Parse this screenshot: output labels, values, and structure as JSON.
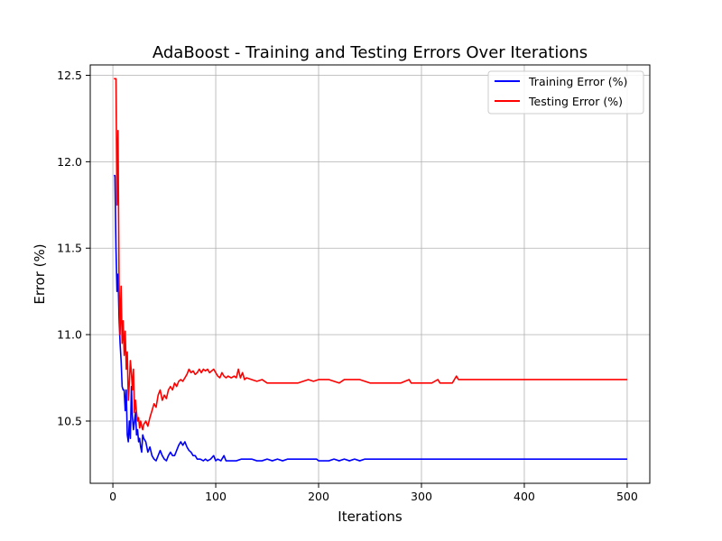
{
  "chart_data": {
    "type": "line",
    "title": "AdaBoost - Training and Testing Errors Over Iterations",
    "xlabel": "Iterations",
    "ylabel": "Error (%)",
    "xlim": [
      -22,
      522
    ],
    "ylim": [
      10.14,
      12.56
    ],
    "x_ticks": [
      0,
      100,
      200,
      300,
      400,
      500
    ],
    "y_ticks": [
      10.5,
      11.0,
      11.5,
      12.0,
      12.5
    ],
    "x_tick_labels": [
      "0",
      "100",
      "200",
      "300",
      "400",
      "500"
    ],
    "y_tick_labels": [
      "10.5",
      "11.0",
      "11.5",
      "12.0",
      "12.5"
    ],
    "grid": true,
    "legend_position": "top-right",
    "series": [
      {
        "name": "Training Error (%)",
        "color": "#0000ff",
        "points": [
          [
            1,
            11.92
          ],
          [
            2,
            11.92
          ],
          [
            3,
            11.5
          ],
          [
            4,
            11.25
          ],
          [
            5,
            11.35
          ],
          [
            6,
            11.1
          ],
          [
            7,
            10.95
          ],
          [
            8,
            10.85
          ],
          [
            9,
            10.7
          ],
          [
            10,
            10.68
          ],
          [
            11,
            10.68
          ],
          [
            12,
            10.56
          ],
          [
            13,
            10.68
          ],
          [
            14,
            10.42
          ],
          [
            15,
            10.38
          ],
          [
            16,
            10.5
          ],
          [
            17,
            10.4
          ],
          [
            18,
            10.7
          ],
          [
            19,
            10.52
          ],
          [
            20,
            10.45
          ],
          [
            21,
            10.5
          ],
          [
            22,
            10.55
          ],
          [
            23,
            10.42
          ],
          [
            24,
            10.45
          ],
          [
            25,
            10.38
          ],
          [
            26,
            10.4
          ],
          [
            27,
            10.35
          ],
          [
            28,
            10.32
          ],
          [
            29,
            10.42
          ],
          [
            30,
            10.4
          ],
          [
            32,
            10.38
          ],
          [
            34,
            10.32
          ],
          [
            36,
            10.35
          ],
          [
            38,
            10.3
          ],
          [
            40,
            10.28
          ],
          [
            42,
            10.27
          ],
          [
            44,
            10.3
          ],
          [
            46,
            10.33
          ],
          [
            48,
            10.3
          ],
          [
            50,
            10.28
          ],
          [
            52,
            10.27
          ],
          [
            54,
            10.3
          ],
          [
            56,
            10.32
          ],
          [
            58,
            10.3
          ],
          [
            60,
            10.3
          ],
          [
            62,
            10.33
          ],
          [
            64,
            10.36
          ],
          [
            66,
            10.38
          ],
          [
            68,
            10.36
          ],
          [
            70,
            10.38
          ],
          [
            72,
            10.35
          ],
          [
            74,
            10.33
          ],
          [
            76,
            10.32
          ],
          [
            78,
            10.3
          ],
          [
            80,
            10.3
          ],
          [
            82,
            10.28
          ],
          [
            85,
            10.28
          ],
          [
            88,
            10.27
          ],
          [
            90,
            10.28
          ],
          [
            92,
            10.27
          ],
          [
            95,
            10.28
          ],
          [
            98,
            10.3
          ],
          [
            100,
            10.27
          ],
          [
            102,
            10.28
          ],
          [
            105,
            10.27
          ],
          [
            108,
            10.3
          ],
          [
            110,
            10.27
          ],
          [
            115,
            10.27
          ],
          [
            120,
            10.27
          ],
          [
            125,
            10.28
          ],
          [
            130,
            10.28
          ],
          [
            135,
            10.28
          ],
          [
            140,
            10.27
          ],
          [
            145,
            10.27
          ],
          [
            150,
            10.28
          ],
          [
            155,
            10.27
          ],
          [
            160,
            10.28
          ],
          [
            165,
            10.27
          ],
          [
            170,
            10.28
          ],
          [
            180,
            10.28
          ],
          [
            190,
            10.28
          ],
          [
            198,
            10.28
          ],
          [
            200,
            10.27
          ],
          [
            205,
            10.27
          ],
          [
            210,
            10.27
          ],
          [
            215,
            10.28
          ],
          [
            220,
            10.27
          ],
          [
            225,
            10.28
          ],
          [
            230,
            10.27
          ],
          [
            235,
            10.28
          ],
          [
            240,
            10.27
          ],
          [
            245,
            10.28
          ],
          [
            250,
            10.28
          ],
          [
            300,
            10.28
          ],
          [
            350,
            10.28
          ],
          [
            400,
            10.28
          ],
          [
            450,
            10.28
          ],
          [
            500,
            10.28
          ]
        ]
      },
      {
        "name": "Testing Error (%)",
        "color": "#ff0000",
        "points": [
          [
            1,
            12.48
          ],
          [
            2,
            12.48
          ],
          [
            3,
            12.48
          ],
          [
            4,
            11.75
          ],
          [
            5,
            12.18
          ],
          [
            6,
            11.3
          ],
          [
            7,
            11.0
          ],
          [
            8,
            11.28
          ],
          [
            9,
            10.95
          ],
          [
            10,
            11.08
          ],
          [
            11,
            10.88
          ],
          [
            12,
            11.02
          ],
          [
            13,
            10.8
          ],
          [
            14,
            10.9
          ],
          [
            15,
            10.62
          ],
          [
            16,
            10.72
          ],
          [
            17,
            10.85
          ],
          [
            18,
            10.78
          ],
          [
            19,
            10.68
          ],
          [
            20,
            10.8
          ],
          [
            21,
            10.55
          ],
          [
            22,
            10.62
          ],
          [
            23,
            10.55
          ],
          [
            24,
            10.5
          ],
          [
            25,
            10.52
          ],
          [
            26,
            10.46
          ],
          [
            27,
            10.5
          ],
          [
            28,
            10.47
          ],
          [
            29,
            10.45
          ],
          [
            30,
            10.48
          ],
          [
            32,
            10.5
          ],
          [
            34,
            10.47
          ],
          [
            36,
            10.52
          ],
          [
            38,
            10.56
          ],
          [
            40,
            10.6
          ],
          [
            42,
            10.58
          ],
          [
            44,
            10.65
          ],
          [
            46,
            10.68
          ],
          [
            48,
            10.62
          ],
          [
            50,
            10.65
          ],
          [
            52,
            10.63
          ],
          [
            54,
            10.68
          ],
          [
            56,
            10.7
          ],
          [
            58,
            10.68
          ],
          [
            60,
            10.72
          ],
          [
            62,
            10.7
          ],
          [
            64,
            10.73
          ],
          [
            66,
            10.74
          ],
          [
            68,
            10.73
          ],
          [
            70,
            10.75
          ],
          [
            72,
            10.77
          ],
          [
            74,
            10.8
          ],
          [
            76,
            10.78
          ],
          [
            78,
            10.79
          ],
          [
            80,
            10.77
          ],
          [
            82,
            10.78
          ],
          [
            84,
            10.8
          ],
          [
            86,
            10.78
          ],
          [
            88,
            10.8
          ],
          [
            90,
            10.79
          ],
          [
            92,
            10.8
          ],
          [
            94,
            10.78
          ],
          [
            96,
            10.79
          ],
          [
            98,
            10.8
          ],
          [
            100,
            10.78
          ],
          [
            102,
            10.76
          ],
          [
            104,
            10.75
          ],
          [
            106,
            10.78
          ],
          [
            108,
            10.76
          ],
          [
            110,
            10.75
          ],
          [
            112,
            10.76
          ],
          [
            115,
            10.75
          ],
          [
            118,
            10.76
          ],
          [
            120,
            10.75
          ],
          [
            122,
            10.8
          ],
          [
            124,
            10.75
          ],
          [
            126,
            10.78
          ],
          [
            128,
            10.74
          ],
          [
            130,
            10.75
          ],
          [
            135,
            10.74
          ],
          [
            140,
            10.73
          ],
          [
            145,
            10.74
          ],
          [
            150,
            10.72
          ],
          [
            160,
            10.72
          ],
          [
            170,
            10.72
          ],
          [
            180,
            10.72
          ],
          [
            185,
            10.73
          ],
          [
            190,
            10.74
          ],
          [
            195,
            10.73
          ],
          [
            200,
            10.74
          ],
          [
            210,
            10.74
          ],
          [
            215,
            10.73
          ],
          [
            220,
            10.72
          ],
          [
            225,
            10.74
          ],
          [
            230,
            10.74
          ],
          [
            240,
            10.74
          ],
          [
            250,
            10.72
          ],
          [
            260,
            10.72
          ],
          [
            270,
            10.72
          ],
          [
            280,
            10.72
          ],
          [
            288,
            10.74
          ],
          [
            290,
            10.72
          ],
          [
            300,
            10.72
          ],
          [
            310,
            10.72
          ],
          [
            316,
            10.74
          ],
          [
            318,
            10.72
          ],
          [
            330,
            10.72
          ],
          [
            334,
            10.76
          ],
          [
            336,
            10.74
          ],
          [
            350,
            10.74
          ],
          [
            400,
            10.74
          ],
          [
            450,
            10.74
          ],
          [
            500,
            10.74
          ]
        ]
      }
    ]
  }
}
